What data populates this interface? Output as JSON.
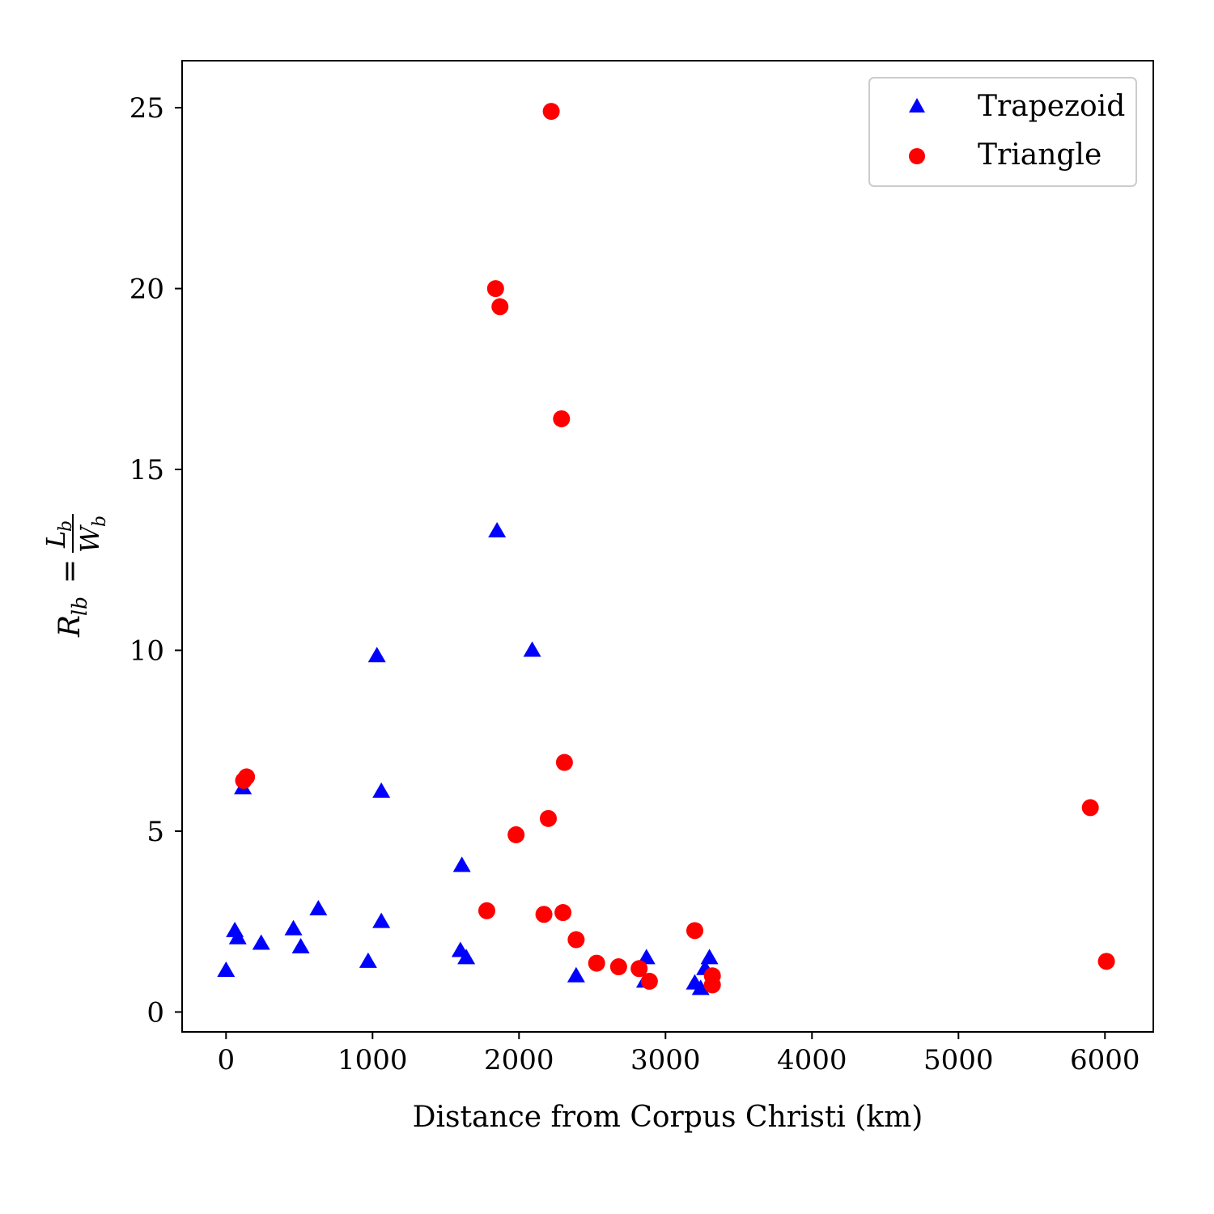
{
  "chart_data": {
    "type": "scatter",
    "xlabel": "Distance from Corpus Christi (km)",
    "ylabel": {
      "lhs_main": "R",
      "lhs_sub": "lb",
      "eq": "=",
      "num_main": "L",
      "num_sub": "b",
      "den_main": "W",
      "den_sub": "b"
    },
    "xlim": [
      -300,
      6330
    ],
    "ylim": [
      -0.55,
      26.3
    ],
    "xticks": [
      0,
      1000,
      2000,
      3000,
      4000,
      5000,
      6000
    ],
    "xtick_labels": [
      "0",
      "1000",
      "2000",
      "3000",
      "4000",
      "5000",
      "6000"
    ],
    "yticks": [
      0,
      5,
      10,
      15,
      20,
      25
    ],
    "ytick_labels": [
      "0",
      "5",
      "10",
      "15",
      "20",
      "25"
    ],
    "grid": false,
    "legend_position": "top-right",
    "series": [
      {
        "name": "Trapezoid",
        "marker": "triangle",
        "color": "#0000ff",
        "points": [
          [
            0,
            1.15
          ],
          [
            60,
            2.25
          ],
          [
            80,
            2.05
          ],
          [
            115,
            6.2
          ],
          [
            240,
            1.9
          ],
          [
            460,
            2.3
          ],
          [
            510,
            1.8
          ],
          [
            630,
            2.85
          ],
          [
            970,
            1.4
          ],
          [
            1030,
            9.85
          ],
          [
            1060,
            6.1
          ],
          [
            1060,
            2.5
          ],
          [
            1600,
            1.7
          ],
          [
            1610,
            4.05
          ],
          [
            1640,
            1.5
          ],
          [
            1850,
            13.3
          ],
          [
            2090,
            10.0
          ],
          [
            2390,
            1.0
          ],
          [
            2860,
            0.85
          ],
          [
            2870,
            1.5
          ],
          [
            3200,
            0.8
          ],
          [
            3240,
            0.65
          ],
          [
            3270,
            1.2
          ],
          [
            3300,
            1.5
          ]
        ]
      },
      {
        "name": "Triangle",
        "marker": "circle",
        "color": "#ff0000",
        "points": [
          [
            120,
            6.4
          ],
          [
            140,
            6.5
          ],
          [
            1780,
            2.8
          ],
          [
            1840,
            20.0
          ],
          [
            1870,
            19.5
          ],
          [
            1980,
            4.9
          ],
          [
            2170,
            2.7
          ],
          [
            2200,
            5.35
          ],
          [
            2220,
            24.9
          ],
          [
            2290,
            16.4
          ],
          [
            2300,
            2.75
          ],
          [
            2310,
            6.9
          ],
          [
            2390,
            2.0
          ],
          [
            2530,
            1.35
          ],
          [
            2680,
            1.25
          ],
          [
            2820,
            1.2
          ],
          [
            2890,
            0.85
          ],
          [
            3200,
            2.25
          ],
          [
            3320,
            1.0
          ],
          [
            3320,
            0.75
          ],
          [
            5900,
            5.65
          ],
          [
            6010,
            1.4
          ]
        ]
      }
    ]
  }
}
